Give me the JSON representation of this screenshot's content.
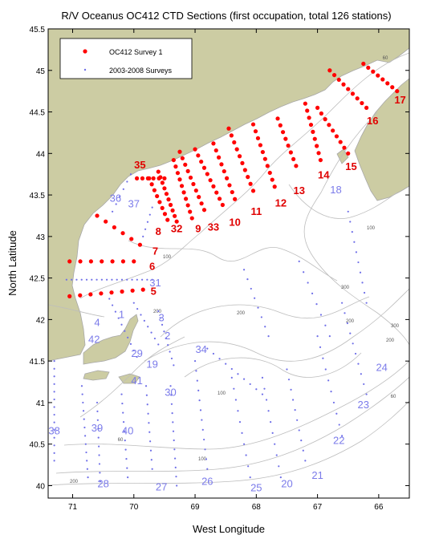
{
  "title": "R/V Oceanus OC412 CTD Sections (first occupation, total 126 stations)",
  "axes": {
    "xlabel": "West Longitude",
    "ylabel": "North Latitude",
    "x_ticks": [
      "71",
      "70",
      "69",
      "68",
      "67",
      "66"
    ],
    "y_ticks": [
      "45.5",
      "45",
      "44.5",
      "44",
      "43.5",
      "43",
      "42.5",
      "42",
      "41.5",
      "41",
      "40.5",
      "40"
    ],
    "xlim": [
      71.4,
      65.5
    ],
    "ylim": [
      39.85,
      45.5
    ]
  },
  "legend": {
    "items": [
      {
        "label": "OC412 Survey 1",
        "color": "#ff0000"
      },
      {
        "label": "2003-2008 Surveys",
        "color": "#6f6fe8"
      }
    ]
  },
  "colors": {
    "land": "#cccca3",
    "coast_line": "#a8a8a8",
    "survey1": "#ff0000",
    "historic": "#6f6fe8",
    "section_label": "#e00000",
    "historic_label": "#7b7bea"
  },
  "contour_labels": [
    "60",
    "100",
    "200",
    "200",
    "100",
    "300",
    "200",
    "300",
    "100",
    "60",
    "200",
    "100",
    "60",
    "200"
  ],
  "section_labels": [
    {
      "text": "35",
      "lon": 69.9,
      "lat": 43.82
    },
    {
      "text": "8",
      "lon": 69.6,
      "lat": 43.02
    },
    {
      "text": "32",
      "lon": 69.3,
      "lat": 43.05
    },
    {
      "text": "9",
      "lon": 68.95,
      "lat": 43.05
    },
    {
      "text": "33",
      "lon": 68.7,
      "lat": 43.07
    },
    {
      "text": "10",
      "lon": 68.35,
      "lat": 43.13
    },
    {
      "text": "11",
      "lon": 68.0,
      "lat": 43.26
    },
    {
      "text": "12",
      "lon": 67.6,
      "lat": 43.36
    },
    {
      "text": "13",
      "lon": 67.3,
      "lat": 43.51
    },
    {
      "text": "14",
      "lon": 66.9,
      "lat": 43.7
    },
    {
      "text": "15",
      "lon": 66.45,
      "lat": 43.8
    },
    {
      "text": "16",
      "lon": 66.1,
      "lat": 44.35
    },
    {
      "text": "17",
      "lon": 65.65,
      "lat": 44.6
    },
    {
      "text": "7",
      "lon": 69.65,
      "lat": 42.78
    },
    {
      "text": "6",
      "lon": 69.7,
      "lat": 42.6
    },
    {
      "text": "5",
      "lon": 69.68,
      "lat": 42.3
    }
  ],
  "historic_labels": [
    {
      "text": "36",
      "lon": 70.3,
      "lat": 43.42
    },
    {
      "text": "37",
      "lon": 70.0,
      "lat": 43.35
    },
    {
      "text": "18",
      "lon": 66.7,
      "lat": 43.52
    },
    {
      "text": "31",
      "lon": 69.65,
      "lat": 42.4
    },
    {
      "text": "4",
      "lon": 70.6,
      "lat": 41.92
    },
    {
      "text": "1",
      "lon": 70.2,
      "lat": 42.02
    },
    {
      "text": "3",
      "lon": 69.55,
      "lat": 41.98
    },
    {
      "text": "2",
      "lon": 69.45,
      "lat": 41.76
    },
    {
      "text": "42",
      "lon": 70.65,
      "lat": 41.72
    },
    {
      "text": "34",
      "lon": 68.9,
      "lat": 41.6
    },
    {
      "text": "29",
      "lon": 69.95,
      "lat": 41.55
    },
    {
      "text": "19",
      "lon": 69.7,
      "lat": 41.42
    },
    {
      "text": "41",
      "lon": 69.95,
      "lat": 41.22
    },
    {
      "text": "30",
      "lon": 69.4,
      "lat": 41.08
    },
    {
      "text": "24",
      "lon": 65.95,
      "lat": 41.38
    },
    {
      "text": "23",
      "lon": 66.25,
      "lat": 40.93
    },
    {
      "text": "38",
      "lon": 71.3,
      "lat": 40.62
    },
    {
      "text": "39",
      "lon": 70.6,
      "lat": 40.65
    },
    {
      "text": "40",
      "lon": 70.1,
      "lat": 40.62
    },
    {
      "text": "22",
      "lon": 66.65,
      "lat": 40.5
    },
    {
      "text": "21",
      "lon": 67.0,
      "lat": 40.08
    },
    {
      "text": "26",
      "lon": 68.8,
      "lat": 40.01
    },
    {
      "text": "20",
      "lon": 67.5,
      "lat": 39.98
    },
    {
      "text": "25",
      "lon": 68.0,
      "lat": 39.93
    },
    {
      "text": "28",
      "lon": 70.5,
      "lat": 39.98
    },
    {
      "text": "27",
      "lon": 69.55,
      "lat": 39.94
    }
  ]
}
